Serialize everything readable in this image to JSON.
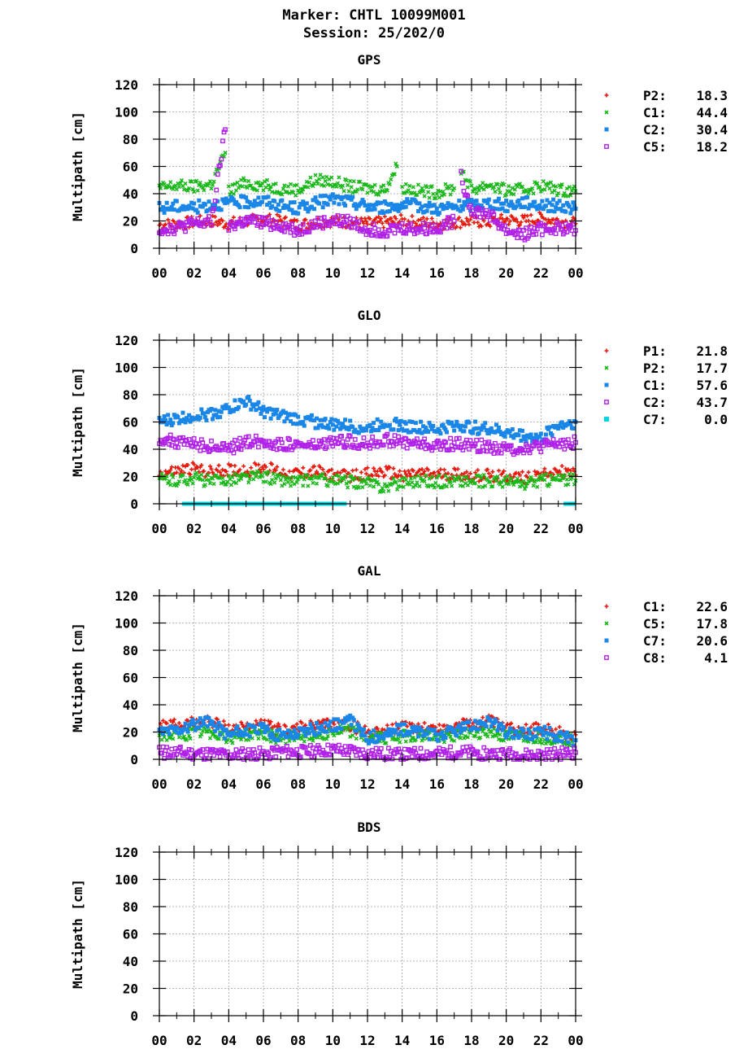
{
  "header": {
    "title": "Marker: CHTL 10099M001",
    "subtitle": "Session: 25/202/0"
  },
  "chart_data": [
    {
      "type": "scatter",
      "title": "GPS",
      "ylabel": "Multipath [cm]",
      "xlabel": "",
      "ylim": [
        0,
        120
      ],
      "yticks": [
        0,
        20,
        40,
        60,
        80,
        100,
        120
      ],
      "xlim": [
        0,
        24
      ],
      "xtick_labels": [
        "00",
        "02",
        "04",
        "06",
        "08",
        "10",
        "12",
        "14",
        "16",
        "18",
        "20",
        "22",
        "00"
      ],
      "grid": true,
      "legend_position": "right",
      "series": [
        {
          "name": "P2",
          "legend_value": "18.3",
          "color": "#e8180c",
          "marker": "+",
          "x": [
            0,
            1,
            2,
            3,
            4,
            5,
            6,
            7,
            8,
            9,
            10,
            11,
            12,
            13,
            14,
            15,
            16,
            17,
            18,
            19,
            20,
            21,
            22,
            23,
            24
          ],
          "values": [
            17,
            18,
            19,
            20,
            18,
            20,
            21,
            20,
            17,
            19,
            20,
            19,
            18,
            19,
            20,
            19,
            18,
            19,
            20,
            19,
            21,
            20,
            22,
            20,
            18
          ]
        },
        {
          "name": "C1",
          "legend_value": "44.4",
          "color": "#18b818",
          "marker": "x",
          "x": [
            0,
            1,
            2,
            3,
            3.8,
            4,
            5,
            6,
            7,
            8,
            9,
            10,
            11,
            12,
            13,
            13.7,
            14,
            15,
            16,
            17,
            17.4,
            18,
            19,
            20,
            21,
            22,
            23,
            24
          ],
          "values": [
            44,
            46,
            45,
            47,
            70,
            42,
            48,
            46,
            44,
            43,
            50,
            49,
            45,
            44,
            43,
            60,
            45,
            42,
            41,
            44,
            58,
            43,
            47,
            42,
            43,
            46,
            43,
            42
          ]
        },
        {
          "name": "C2",
          "legend_value": "30.4",
          "color": "#1a87e8",
          "marker": "square",
          "x": [
            0,
            1,
            2,
            3,
            4,
            5,
            6,
            7,
            8,
            9,
            10,
            11,
            12,
            13,
            14,
            15,
            16,
            17,
            18,
            19,
            20,
            21,
            22,
            23,
            24
          ],
          "values": [
            29,
            31,
            30,
            32,
            33,
            34,
            35,
            31,
            29,
            33,
            36,
            34,
            31,
            30,
            32,
            31,
            29,
            30,
            32,
            33,
            31,
            34,
            32,
            31,
            29
          ]
        },
        {
          "name": "C5",
          "legend_value": "18.2",
          "color": "#b020e8",
          "marker": "open-square",
          "x": [
            0,
            1,
            2,
            3,
            3.8,
            4,
            5,
            6,
            7,
            8,
            9,
            10,
            11,
            12,
            13,
            14,
            15,
            16,
            17,
            17.4,
            18,
            19,
            20,
            21,
            22,
            23,
            24
          ],
          "values": [
            14,
            15,
            18,
            19,
            87,
            16,
            20,
            19,
            17,
            13,
            18,
            20,
            19,
            14,
            13,
            15,
            14,
            15,
            20,
            52,
            28,
            25,
            13,
            10,
            14,
            15,
            13
          ]
        }
      ]
    },
    {
      "type": "scatter",
      "title": "GLO",
      "ylabel": "Multipath [cm]",
      "xlabel": "",
      "ylim": [
        0,
        120
      ],
      "yticks": [
        0,
        20,
        40,
        60,
        80,
        100,
        120
      ],
      "xlim": [
        0,
        24
      ],
      "xtick_labels": [
        "00",
        "02",
        "04",
        "06",
        "08",
        "10",
        "12",
        "14",
        "16",
        "18",
        "20",
        "22",
        "00"
      ],
      "grid": true,
      "legend_position": "right",
      "series": [
        {
          "name": "P1",
          "legend_value": "21.8",
          "color": "#e8180c",
          "marker": "+",
          "x": [
            0,
            1,
            2,
            3,
            4,
            5,
            6,
            7,
            8,
            9,
            10,
            11,
            12,
            13,
            14,
            15,
            16,
            17,
            18,
            19,
            20,
            21,
            22,
            23,
            24
          ],
          "values": [
            22,
            24,
            26,
            23,
            25,
            24,
            27,
            23,
            22,
            24,
            21,
            20,
            22,
            23,
            21,
            22,
            21,
            22,
            20,
            21,
            20,
            19,
            22,
            24,
            21
          ]
        },
        {
          "name": "P2",
          "legend_value": "17.7",
          "color": "#18b818",
          "marker": "x",
          "x": [
            0,
            1,
            2,
            3,
            4,
            5,
            6,
            7,
            8,
            9,
            10,
            11,
            12,
            13,
            14,
            15,
            16,
            17,
            18,
            19,
            20,
            21,
            22,
            23,
            24
          ],
          "values": [
            18,
            17,
            19,
            16,
            18,
            19,
            20,
            17,
            16,
            18,
            17,
            16,
            15,
            12,
            16,
            17,
            16,
            17,
            16,
            17,
            16,
            14,
            17,
            18,
            17
          ]
        },
        {
          "name": "C1",
          "legend_value": "57.6",
          "color": "#1a87e8",
          "marker": "square",
          "x": [
            0,
            1,
            2,
            3,
            4,
            5,
            6,
            7,
            8,
            9,
            10,
            11,
            12,
            13,
            14,
            15,
            16,
            17,
            18,
            19,
            20,
            21,
            22,
            23,
            24
          ],
          "values": [
            60,
            62,
            65,
            66,
            70,
            75,
            68,
            64,
            62,
            60,
            58,
            57,
            55,
            60,
            57,
            56,
            54,
            58,
            56,
            55,
            52,
            50,
            48,
            58,
            60
          ]
        },
        {
          "name": "C2",
          "legend_value": "43.7",
          "color": "#b020e8",
          "marker": "open-square",
          "x": [
            0,
            1,
            2,
            3,
            4,
            5,
            6,
            7,
            8,
            9,
            10,
            11,
            12,
            13,
            14,
            15,
            16,
            17,
            18,
            19,
            20,
            21,
            22,
            23,
            24
          ],
          "values": [
            48,
            45,
            44,
            42,
            40,
            46,
            45,
            44,
            43,
            42,
            45,
            46,
            44,
            47,
            45,
            44,
            42,
            44,
            43,
            42,
            40,
            41,
            42,
            44,
            45
          ]
        },
        {
          "name": "C7",
          "legend_value": "0.0",
          "color": "#00d8e0",
          "marker": "filled-square",
          "x": [
            1.3,
            2,
            3,
            4,
            5,
            6,
            7,
            8,
            9,
            10,
            10.8,
            23.3,
            24
          ],
          "values": [
            0,
            0,
            0,
            0,
            0,
            0,
            0,
            0,
            0,
            0,
            0,
            0,
            0
          ]
        }
      ]
    },
    {
      "type": "scatter",
      "title": "GAL",
      "ylabel": "Multipath [cm]",
      "xlabel": "",
      "ylim": [
        0,
        120
      ],
      "yticks": [
        0,
        20,
        40,
        60,
        80,
        100,
        120
      ],
      "xlim": [
        0,
        24
      ],
      "xtick_labels": [
        "00",
        "02",
        "04",
        "06",
        "08",
        "10",
        "12",
        "14",
        "16",
        "18",
        "20",
        "22",
        "00"
      ],
      "grid": true,
      "legend_position": "right",
      "series": [
        {
          "name": "C1",
          "legend_value": "22.6",
          "color": "#e8180c",
          "marker": "+",
          "x": [
            0,
            1,
            2,
            3,
            4,
            5,
            6,
            7,
            8,
            9,
            10,
            11,
            12,
            13,
            14,
            15,
            16,
            17,
            18,
            19,
            20,
            21,
            22,
            23,
            24
          ],
          "values": [
            24,
            25,
            27,
            28,
            22,
            24,
            25,
            21,
            23,
            24,
            26,
            25,
            20,
            21,
            23,
            24,
            22,
            24,
            26,
            28,
            22,
            23,
            22,
            20,
            18
          ]
        },
        {
          "name": "C5",
          "legend_value": "17.8",
          "color": "#18b818",
          "marker": "x",
          "x": [
            0,
            1,
            2,
            3,
            4,
            5,
            6,
            7,
            8,
            9,
            10,
            11,
            12,
            13,
            14,
            15,
            16,
            17,
            18,
            19,
            20,
            21,
            22,
            23,
            24
          ],
          "values": [
            18,
            17,
            19,
            20,
            16,
            18,
            19,
            15,
            17,
            18,
            20,
            21,
            15,
            16,
            17,
            18,
            16,
            18,
            19,
            20,
            16,
            17,
            16,
            15,
            14
          ]
        },
        {
          "name": "C7",
          "legend_value": "20.6",
          "color": "#1a87e8",
          "marker": "square",
          "x": [
            0,
            1,
            2,
            3,
            4,
            5,
            6,
            7,
            8,
            9,
            10,
            11,
            12,
            13,
            14,
            15,
            16,
            17,
            18,
            19,
            20,
            21,
            22,
            23,
            24
          ],
          "values": [
            20,
            22,
            25,
            27,
            18,
            21,
            22,
            17,
            20,
            22,
            25,
            28,
            16,
            18,
            22,
            20,
            17,
            21,
            24,
            29,
            19,
            18,
            20,
            17,
            14
          ]
        },
        {
          "name": "C8",
          "legend_value": "4.1",
          "color": "#b020e8",
          "marker": "open-square",
          "x": [
            0,
            1,
            2,
            3,
            4,
            5,
            6,
            7,
            8,
            9,
            10,
            11,
            12,
            13,
            14,
            15,
            16,
            17,
            18,
            19,
            20,
            21,
            22,
            23,
            24
          ],
          "values": [
            5,
            5,
            4,
            4,
            3,
            4,
            4,
            6,
            5,
            6,
            7,
            6,
            4,
            4,
            3,
            4,
            4,
            5,
            5,
            4,
            4,
            3,
            3,
            4,
            5
          ]
        }
      ]
    },
    {
      "type": "scatter",
      "title": "BDS",
      "ylabel": "Multipath [cm]",
      "xlabel": "",
      "ylim": [
        0,
        120
      ],
      "yticks": [
        0,
        20,
        40,
        60,
        80,
        100,
        120
      ],
      "xlim": [
        0,
        24
      ],
      "xtick_labels": [
        "00",
        "02",
        "04",
        "06",
        "08",
        "10",
        "12",
        "14",
        "16",
        "18",
        "20",
        "22",
        "00"
      ],
      "grid": true,
      "legend_position": "right",
      "series": []
    }
  ]
}
